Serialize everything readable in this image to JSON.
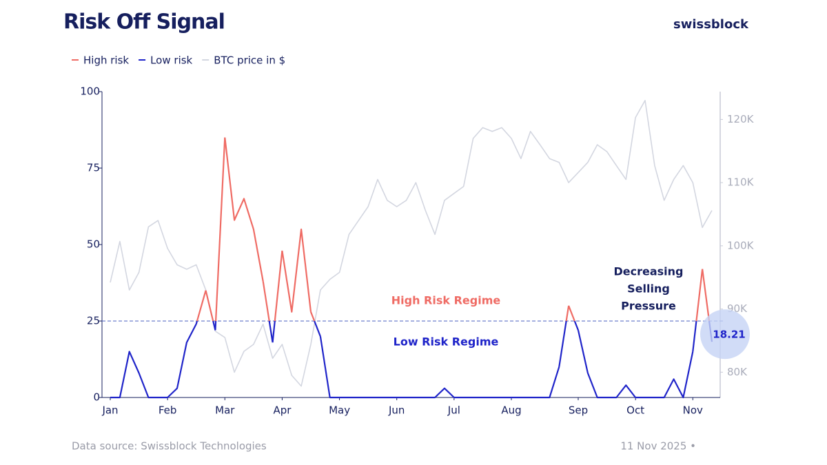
{
  "chart_data": {
    "type": "line",
    "title": "Risk Off Signal",
    "brand": "swissblock",
    "source": "Data source: Swissblock Technologies",
    "date": "11 Nov 2025 •",
    "categories": [
      "Jan",
      null,
      null,
      null,
      null,
      null,
      "Feb",
      null,
      null,
      null,
      null,
      null,
      "Mar",
      null,
      null,
      null,
      null,
      null,
      "Apr",
      null,
      null,
      null,
      null,
      null,
      "May",
      null,
      null,
      null,
      null,
      null,
      "Jun",
      null,
      null,
      null,
      null,
      null,
      "Jul",
      null,
      null,
      null,
      null,
      null,
      "Aug",
      null,
      null,
      null,
      null,
      null,
      null,
      "Sep",
      null,
      null,
      null,
      null,
      null,
      "Oct",
      null,
      null,
      null,
      null,
      null,
      "Nov",
      null,
      null
    ],
    "series": [
      {
        "name": "High risk",
        "color": "#ef6b64",
        "values": [
          null,
          null,
          null,
          null,
          null,
          null,
          null,
          null,
          null,
          null,
          35,
          null,
          85,
          58,
          65,
          55,
          38,
          null,
          48,
          28,
          55,
          28,
          null,
          null,
          null,
          null,
          null,
          null,
          null,
          null,
          null,
          null,
          null,
          null,
          null,
          null,
          null,
          null,
          null,
          null,
          null,
          null,
          null,
          null,
          null,
          null,
          null,
          null,
          30,
          null,
          null,
          null,
          null,
          null,
          null,
          null,
          null,
          null,
          null,
          null,
          null,
          null,
          42,
          null
        ]
      },
      {
        "name": "Low risk",
        "color": "#1f24c9",
        "values": [
          0,
          0,
          15,
          8,
          0,
          0,
          0,
          3,
          18,
          24,
          null,
          22,
          null,
          null,
          null,
          null,
          null,
          18,
          null,
          null,
          null,
          null,
          20,
          0,
          0,
          0,
          0,
          0,
          0,
          0,
          0,
          0,
          0,
          0,
          0,
          3,
          0,
          0,
          0,
          0,
          0,
          0,
          0,
          0,
          0,
          0,
          0,
          10,
          null,
          22,
          8,
          0,
          0,
          0,
          4,
          0,
          0,
          0,
          0,
          6,
          0,
          15,
          null,
          18.21
        ]
      },
      {
        "name": "BTC price in $",
        "color": "#d3d6e0",
        "axis": "y2",
        "values": [
          94200,
          100700,
          93000,
          95800,
          103000,
          104000,
          99600,
          97000,
          96300,
          97000,
          93000,
          86500,
          85500,
          80000,
          83300,
          84400,
          87600,
          82200,
          84400,
          79500,
          77800,
          84400,
          93000,
          94700,
          95800,
          101800,
          104000,
          106200,
          110500,
          107200,
          106200,
          107200,
          110000,
          105600,
          101800,
          107200,
          108300,
          109400,
          117000,
          118700,
          118100,
          118700,
          117000,
          113800,
          118100,
          116000,
          113800,
          113200,
          110000,
          111600,
          113200,
          116000,
          114900,
          112700,
          110500,
          120300,
          123000,
          112700,
          107200,
          110500,
          112700,
          110000,
          102900,
          105600
        ]
      }
    ],
    "threshold": 25,
    "annotations": {
      "high": "High Risk Regime",
      "low": "Low Risk Regime",
      "pressure": [
        "Decreasing",
        "Selling",
        "Pressure"
      ]
    },
    "ylim": [
      0,
      100
    ],
    "yticks": [
      0,
      25,
      50,
      75,
      100
    ],
    "y2lim": [
      76000,
      124400
    ],
    "y2ticks": [
      {
        "value": 80000,
        "label": "80K"
      },
      {
        "value": 90000,
        "label": "90K"
      },
      {
        "value": 100000,
        "label": "100K"
      },
      {
        "value": 110000,
        "label": "110K"
      },
      {
        "value": 120000,
        "label": "120K"
      }
    ]
  }
}
